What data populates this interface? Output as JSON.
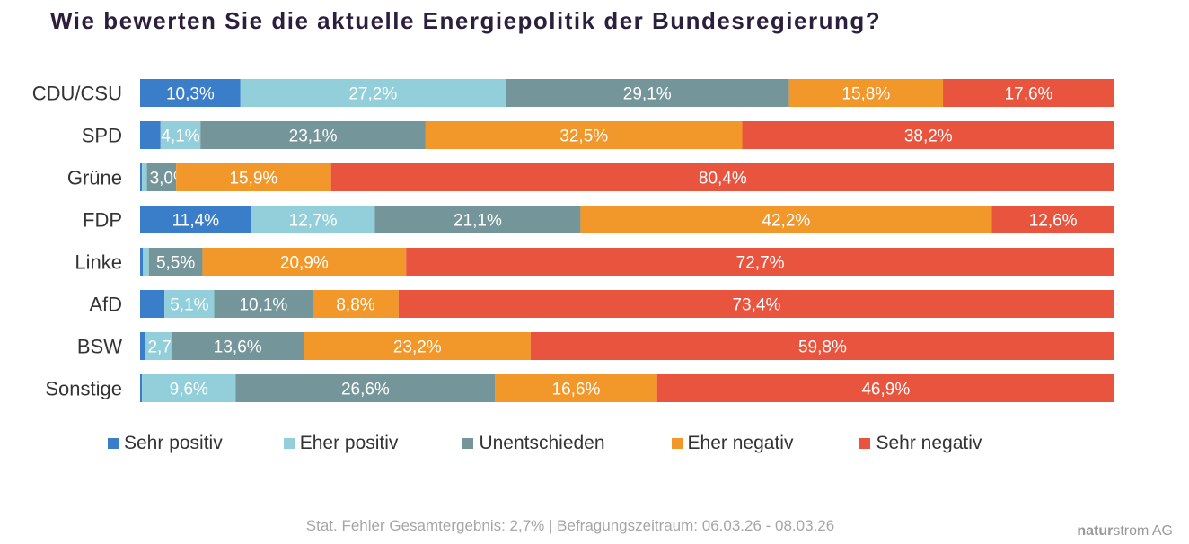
{
  "chart_data": {
    "type": "bar",
    "orientation": "horizontal",
    "stacked": true,
    "title": "Wie bewerten Sie die aktuelle Energiepolitik der Bundesregierung?",
    "categories": [
      "CDU/CSU",
      "SPD",
      "Grüne",
      "FDP",
      "Linke",
      "AfD",
      "BSW",
      "Sonstige"
    ],
    "series": [
      {
        "name": "Sehr positiv",
        "color": "#3a7dc9",
        "values": [
          10.3,
          2.1,
          0.2,
          11.4,
          0.3,
          2.5,
          0.5,
          0.2
        ]
      },
      {
        "name": "Eher positiv",
        "color": "#92cfdb",
        "values": [
          27.2,
          4.1,
          0.5,
          12.7,
          0.6,
          5.1,
          2.7,
          9.6
        ]
      },
      {
        "name": "Unentschieden",
        "color": "#74959a",
        "values": [
          29.1,
          23.1,
          3.0,
          21.1,
          5.5,
          10.1,
          13.6,
          26.6
        ]
      },
      {
        "name": "Eher negativ",
        "color": "#f2972a",
        "values": [
          15.8,
          32.5,
          15.9,
          42.2,
          20.9,
          8.8,
          23.2,
          16.6
        ]
      },
      {
        "name": "Sehr negativ",
        "color": "#e8543d",
        "values": [
          17.6,
          38.2,
          80.4,
          12.6,
          72.7,
          73.4,
          59.8,
          46.9
        ]
      }
    ],
    "labels": [
      [
        "10,3%",
        "27,2%",
        "29,1%",
        "15,8%",
        "17,6%"
      ],
      [
        "",
        "4,1%",
        "23,1%",
        "32,5%",
        "38,2%"
      ],
      [
        "",
        "",
        "3,0%",
        "15,9%",
        "80,4%"
      ],
      [
        "11,4%",
        "12,7%",
        "21,1%",
        "42,2%",
        "12,6%"
      ],
      [
        "",
        "",
        "5,5%",
        "20,9%",
        "72,7%"
      ],
      [
        "",
        "5,1%",
        "10,1%",
        "8,8%",
        "73,4%"
      ],
      [
        "",
        "2,7%",
        "13,6%",
        "23,2%",
        "59,8%"
      ],
      [
        "",
        "9,6%",
        "26,6%",
        "16,6%",
        "46,9%"
      ]
    ],
    "xlim": [
      0,
      100
    ],
    "grid": false,
    "legend_position": "bottom"
  },
  "footer": {
    "note": "Stat. Fehler Gesamtergebnis: 2,7% | Befragungszeitraum: 06.03.26 - 08.03.26",
    "brand_bold": "natur",
    "brand_rest": "strom AG"
  }
}
